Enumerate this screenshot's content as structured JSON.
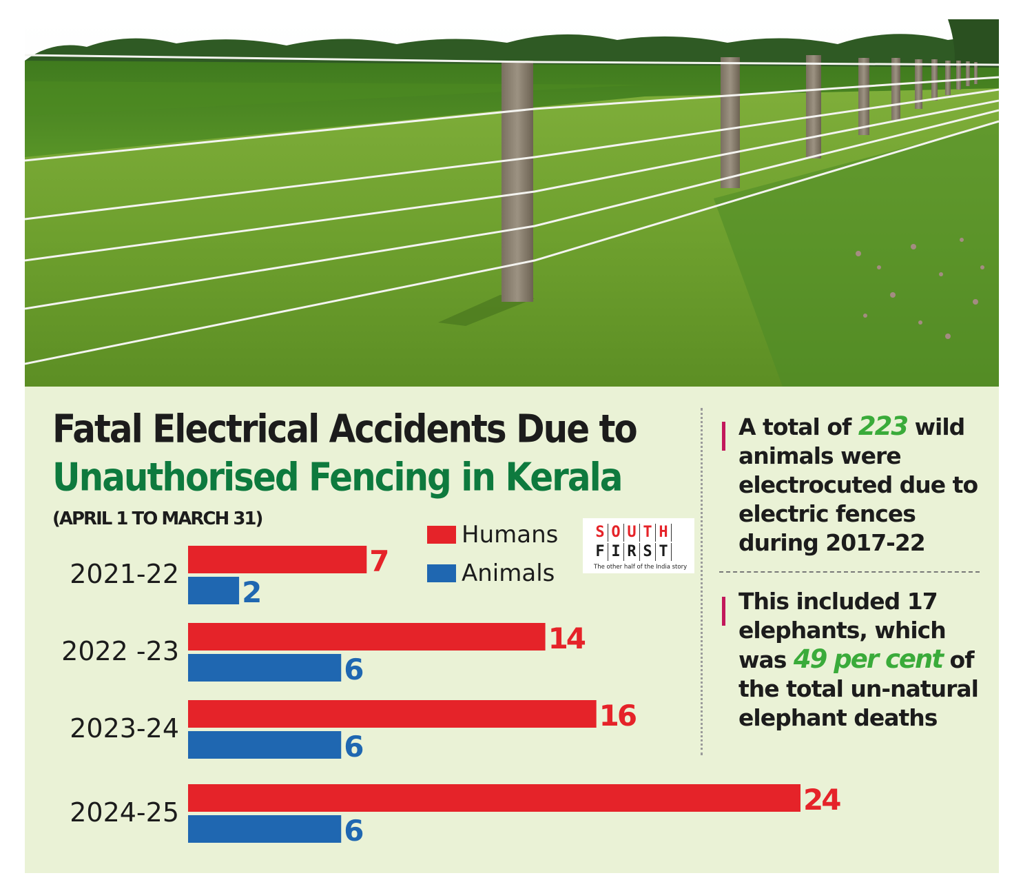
{
  "header_image": {
    "description_icon": "electric-fence-field-photo"
  },
  "title": {
    "line1": "Fatal Electrical Accidents Due to",
    "line2": "Unauthorised Fencing in Kerala",
    "line2_color": "#0e7a3e"
  },
  "period": "(APRIL 1 TO MARCH 31)",
  "legend": [
    {
      "label": "Humans",
      "color": "#e52329"
    },
    {
      "label": "Animals",
      "color": "#1f67b1"
    }
  ],
  "logo": {
    "row1": [
      "S",
      "O",
      "U",
      "T",
      "H"
    ],
    "row2": [
      "F",
      "I",
      "R",
      "S",
      "T"
    ],
    "tagline": "The other half of the India story"
  },
  "chart_data": {
    "type": "bar",
    "orientation": "horizontal",
    "categories": [
      "2021-22",
      "2022 -23",
      "2023-24",
      "2024-25"
    ],
    "series": [
      {
        "name": "Humans",
        "values": [
          7,
          14,
          16,
          24
        ],
        "color": "#e52329"
      },
      {
        "name": "Animals",
        "values": [
          2,
          6,
          6,
          6
        ],
        "color": "#1f67b1"
      }
    ],
    "title": "Fatal Electrical Accidents Due to Unauthorised Fencing in Kerala",
    "subtitle": "(APRIL 1 TO MARCH 31)",
    "xlabel": "",
    "ylabel": "",
    "xlim": [
      0,
      24
    ],
    "grid": false,
    "legend_position": "top-center",
    "data_labels": true
  },
  "facts": {
    "fact1": {
      "prefix": "A total of ",
      "highlight": "223",
      "suffix": " wild animals were electrocuted due to electric fences during 2017-22"
    },
    "fact2": {
      "prefix": "This included 17 elephants, which was ",
      "highlight": "49 per cent",
      "suffix": " of the total un-natural elephant deaths"
    },
    "highlight_color": "#3aab3a",
    "marker_color": "#c2185b"
  }
}
